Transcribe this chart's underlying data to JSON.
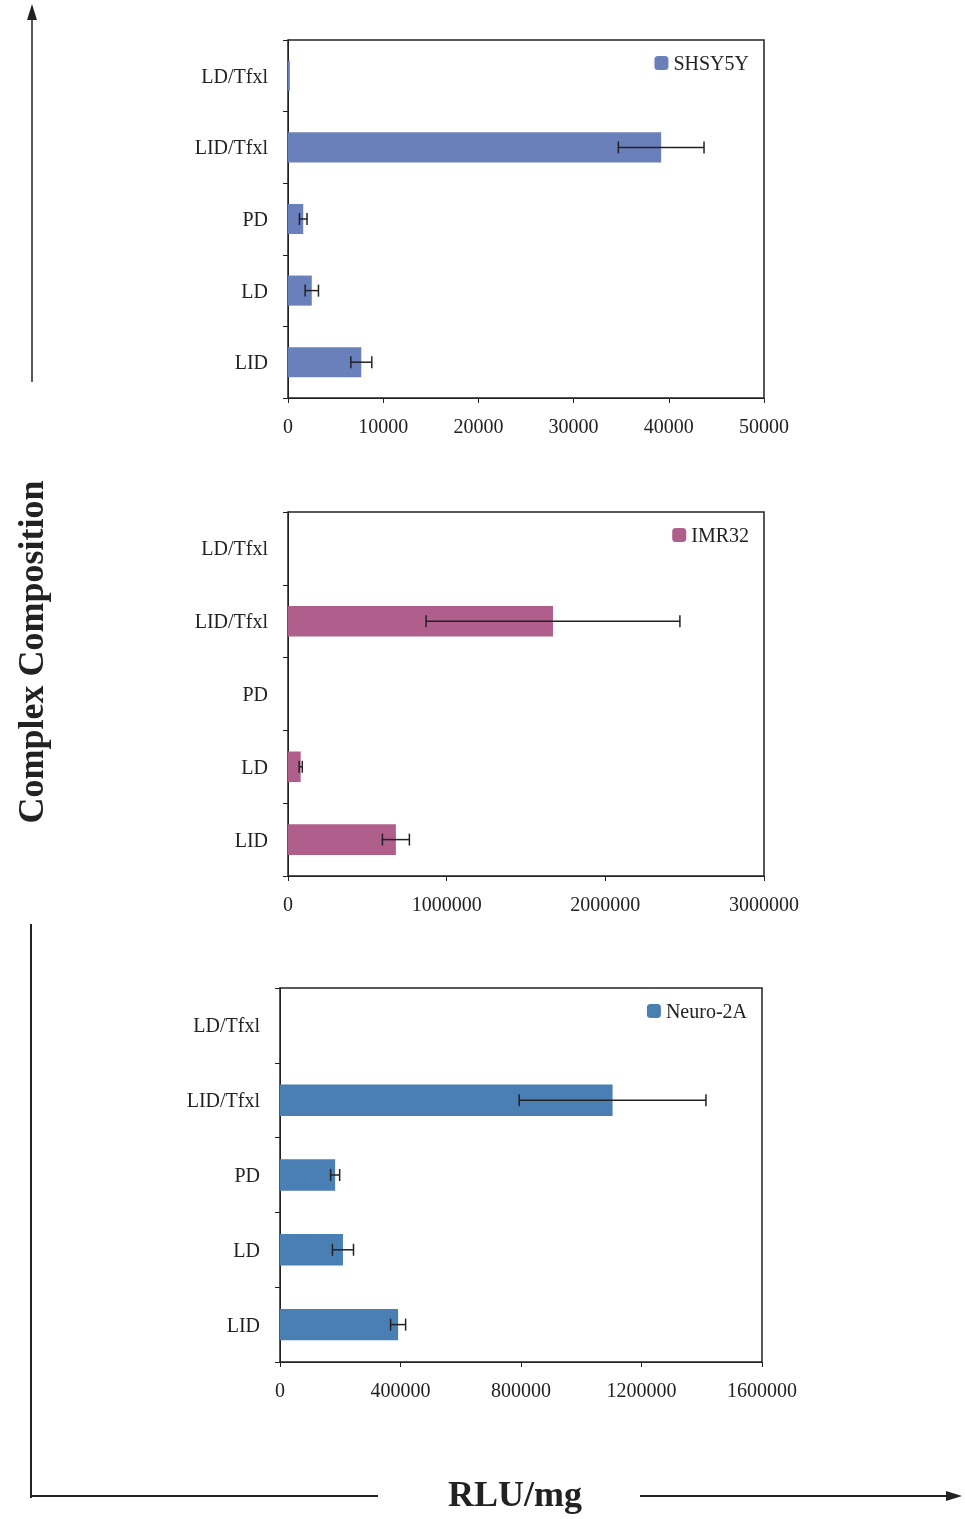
{
  "chart_data": [
    {
      "type": "bar",
      "orientation": "horizontal",
      "categories": [
        "LD/Tfxl",
        "LID/Tfxl",
        "PD",
        "LD",
        "LID"
      ],
      "series": [
        {
          "name": "SHSY5Y",
          "color": "#6a80ba",
          "values": [
            200,
            39200,
            1600,
            2500,
            7700
          ],
          "errors": [
            null,
            4500,
            400,
            700,
            1100
          ]
        }
      ],
      "xlim": [
        0,
        50000
      ],
      "xticks": [
        0,
        10000,
        20000,
        30000,
        40000,
        50000
      ],
      "legend": "top right",
      "grid": false
    },
    {
      "type": "bar",
      "orientation": "horizontal",
      "categories": [
        "LD/Tfxl",
        "LID/Tfxl",
        "PD",
        "LD",
        "LID"
      ],
      "series": [
        {
          "name": "IMR32",
          "color": "#b05e8c",
          "values": [
            0,
            1670000,
            0,
            80000,
            680000
          ],
          "errors": [
            null,
            800000,
            null,
            10000,
            85000
          ]
        }
      ],
      "xlim": [
        0,
        3000000
      ],
      "xticks": [
        0,
        1000000,
        2000000,
        3000000
      ],
      "legend": "top right",
      "grid": false,
      "ylabel": "Complex Composition"
    },
    {
      "type": "bar",
      "orientation": "horizontal",
      "categories": [
        "LD/Tfxl",
        "LID/Tfxl",
        "PD",
        "LD",
        "LID"
      ],
      "series": [
        {
          "name": "Neuro-2A",
          "color": "#4a7fb3",
          "values": [
            0,
            1104000,
            183000,
            209000,
            392000
          ],
          "errors": [
            null,
            310000,
            15000,
            35000,
            25000
          ]
        }
      ],
      "xlim": [
        0,
        1600000
      ],
      "xticks": [
        0,
        400000,
        800000,
        1200000,
        1600000
      ],
      "legend": "top right",
      "grid": false,
      "xlabel": "RLU/mg"
    }
  ]
}
